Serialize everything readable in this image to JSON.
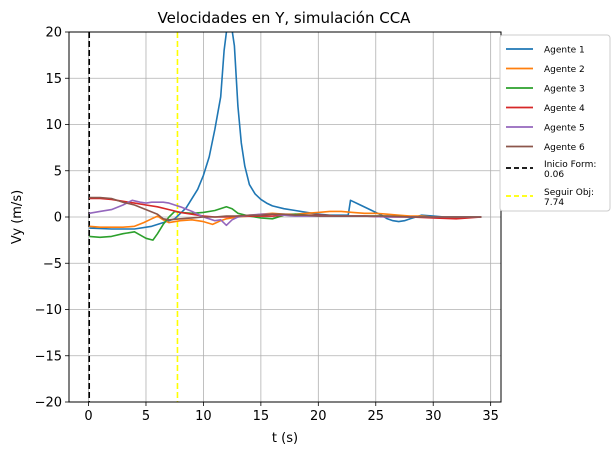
{
  "chart_data": {
    "type": "line",
    "title": "Velocidades en Y, simulación CCA",
    "xlabel": "t (s)",
    "ylabel": "Vy (m/s)",
    "xlim": [
      -1.7,
      35.9
    ],
    "ylim": [
      -20,
      20
    ],
    "xticks": [
      0,
      5,
      10,
      15,
      20,
      25,
      30,
      35
    ],
    "yticks": [
      -20,
      -15,
      -10,
      -5,
      0,
      5,
      10,
      15,
      20
    ],
    "xtick_labels": [
      "0",
      "5",
      "10",
      "15",
      "20",
      "25",
      "30",
      "35"
    ],
    "ytick_labels": [
      "−20",
      "−15",
      "−10",
      "−5",
      "0",
      "5",
      "10",
      "15",
      "20"
    ],
    "grid": true,
    "legend_position": "outside-right",
    "series": [
      {
        "name": "Agente 1",
        "color": "#1f77b4",
        "x": [
          0.06,
          2,
          4,
          5.5,
          6.5,
          7.5,
          8.5,
          9.5,
          10,
          10.5,
          11,
          11.5,
          11.8,
          12.1,
          12.4,
          12.7,
          13,
          13.3,
          13.6,
          14,
          14.5,
          15,
          15.5,
          16,
          17,
          18,
          19,
          20,
          21,
          22,
          22.6,
          22.8,
          23.5,
          24.5,
          25.5,
          26,
          26.5,
          27,
          27.5,
          28,
          29,
          30,
          31,
          32,
          33,
          34.2
        ],
        "y": [
          -1.2,
          -1.3,
          -1.3,
          -1.0,
          -0.6,
          -0.2,
          1.0,
          3.0,
          4.5,
          6.5,
          9.5,
          13.0,
          18.0,
          21.0,
          21.0,
          18.5,
          12.0,
          8.0,
          5.5,
          3.5,
          2.5,
          1.9,
          1.5,
          1.2,
          0.9,
          0.7,
          0.5,
          0.3,
          0.2,
          0.2,
          0.2,
          1.8,
          1.4,
          0.8,
          0.2,
          -0.2,
          -0.4,
          -0.5,
          -0.4,
          -0.2,
          0.2,
          0.1,
          0.0,
          0.0,
          0.0,
          0.0
        ]
      },
      {
        "name": "Agente 2",
        "color": "#ff7f0e",
        "x": [
          0.06,
          1,
          2,
          3,
          4,
          4.8,
          5.5,
          6,
          6.5,
          7,
          8,
          9,
          10,
          10.8,
          11.5,
          12,
          13,
          14,
          15,
          16,
          17,
          18,
          19,
          20,
          21,
          22,
          23,
          24,
          25,
          26,
          27,
          28,
          29,
          30,
          31,
          32,
          33,
          34.2
        ],
        "y": [
          -1.0,
          -1.1,
          -1.1,
          -1.1,
          -1.0,
          -0.6,
          -0.2,
          0.1,
          -0.3,
          -0.6,
          -0.4,
          -0.3,
          -0.5,
          -0.8,
          -0.4,
          -0.2,
          0.0,
          0.1,
          0.3,
          0.4,
          0.3,
          0.3,
          0.4,
          0.5,
          0.6,
          0.6,
          0.5,
          0.4,
          0.4,
          0.3,
          0.2,
          0.1,
          0.1,
          0.0,
          -0.1,
          -0.1,
          0.0,
          0.0
        ]
      },
      {
        "name": "Agente 3",
        "color": "#2ca02c",
        "x": [
          0.06,
          1,
          2,
          3,
          4,
          5,
          5.6,
          6,
          6.5,
          7,
          7.5,
          8,
          9,
          10,
          11,
          12,
          12.5,
          13,
          14,
          15,
          16,
          17,
          18,
          19,
          20,
          22,
          24,
          26,
          28,
          30,
          32,
          34.2
        ],
        "y": [
          -2.1,
          -2.2,
          -2.1,
          -1.8,
          -1.6,
          -2.3,
          -2.5,
          -1.8,
          -0.8,
          0.0,
          0.6,
          0.5,
          0.4,
          0.5,
          0.7,
          1.1,
          0.9,
          0.4,
          0.1,
          -0.1,
          -0.2,
          0.2,
          0.3,
          0.2,
          0.2,
          0.1,
          0.1,
          0.1,
          0.0,
          0.0,
          0.0,
          0.0
        ]
      },
      {
        "name": "Agente 4",
        "color": "#d62728",
        "x": [
          0.06,
          1,
          2,
          3,
          4,
          5,
          6,
          7,
          8,
          9,
          10,
          11,
          12,
          13,
          14,
          15,
          16,
          17,
          18,
          19,
          20,
          22,
          24,
          26,
          28,
          30,
          32,
          34.2
        ],
        "y": [
          2.0,
          2.0,
          1.9,
          1.7,
          1.5,
          1.3,
          1.1,
          0.8,
          0.5,
          0.3,
          0.1,
          0.0,
          0.0,
          0.1,
          0.1,
          0.1,
          0.1,
          0.2,
          0.2,
          0.2,
          0.2,
          0.1,
          0.1,
          0.0,
          0.0,
          -0.1,
          -0.2,
          0.0
        ]
      },
      {
        "name": "Agente 5",
        "color": "#9467bd",
        "x": [
          0.06,
          1,
          2,
          3,
          3.8,
          4.5,
          5,
          5.5,
          6,
          6.5,
          7,
          7.5,
          8,
          9,
          10,
          10.5,
          11,
          11.5,
          12,
          12.5,
          13,
          14,
          15,
          16,
          17,
          18,
          19,
          20,
          22,
          24,
          26,
          28,
          30,
          32,
          34.2
        ],
        "y": [
          0.4,
          0.6,
          0.8,
          1.3,
          1.8,
          1.6,
          1.5,
          1.6,
          1.6,
          1.6,
          1.5,
          1.3,
          1.1,
          0.6,
          0.0,
          -0.2,
          -0.4,
          -0.3,
          -0.9,
          -0.3,
          0.0,
          0.2,
          0.3,
          0.3,
          0.2,
          0.1,
          0.1,
          0.1,
          0.1,
          0.1,
          0.0,
          0.0,
          0.0,
          0.0,
          0.0
        ]
      },
      {
        "name": "Agente 6",
        "color": "#8c564b",
        "x": [
          0.06,
          1,
          2,
          3,
          4,
          5,
          6,
          6.5,
          7,
          8,
          9,
          10,
          11,
          12,
          13,
          14,
          15,
          16,
          17,
          18,
          19,
          20,
          22,
          24,
          26,
          28,
          30,
          32,
          34.2
        ],
        "y": [
          2.1,
          2.1,
          2.0,
          1.6,
          1.3,
          0.8,
          0.3,
          -0.2,
          -0.3,
          -0.2,
          -0.1,
          0.0,
          0.0,
          0.1,
          0.1,
          0.2,
          0.2,
          0.3,
          0.3,
          0.2,
          0.2,
          0.1,
          0.1,
          0.1,
          0.1,
          0.0,
          0.0,
          0.0,
          0.0
        ]
      }
    ],
    "vlines": [
      {
        "name": "Inicio Form: 0.06",
        "name_lines": [
          "Inicio Form:",
          "0.06"
        ],
        "x": 0.06,
        "color": "#000000"
      },
      {
        "name": "Seguir Obj: 7.74",
        "name_lines": [
          "Seguir Obj:",
          "7.74"
        ],
        "x": 7.74,
        "color": "#ffff00"
      }
    ]
  }
}
